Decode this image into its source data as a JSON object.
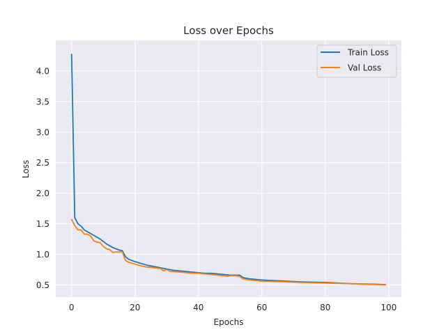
{
  "chart_data": {
    "type": "line",
    "title": "Loss over Epochs",
    "xlabel": "Epochs",
    "ylabel": "Loss",
    "xlim": [
      -5,
      104
    ],
    "ylim": [
      0.3,
      4.5
    ],
    "xticks": [
      0,
      20,
      40,
      60,
      80,
      100
    ],
    "yticks": [
      0.5,
      1.0,
      1.5,
      2.0,
      2.5,
      3.0,
      3.5,
      4.0
    ],
    "grid": true,
    "legend_position": "top-right",
    "background": "#eaeaf2",
    "series": [
      {
        "name": "Train Loss",
        "color": "#1f77b4",
        "points": [
          [
            0,
            4.27
          ],
          [
            1,
            1.6
          ],
          [
            2,
            1.5
          ],
          [
            3,
            1.46
          ],
          [
            4,
            1.4
          ],
          [
            5,
            1.37
          ],
          [
            6,
            1.34
          ],
          [
            7,
            1.31
          ],
          [
            8,
            1.28
          ],
          [
            9,
            1.25
          ],
          [
            10,
            1.21
          ],
          [
            11,
            1.17
          ],
          [
            12,
            1.14
          ],
          [
            13,
            1.11
          ],
          [
            14,
            1.09
          ],
          [
            15,
            1.07
          ],
          [
            16,
            1.06
          ],
          [
            17,
            0.96
          ],
          [
            18,
            0.92
          ],
          [
            20,
            0.88
          ],
          [
            22,
            0.85
          ],
          [
            24,
            0.82
          ],
          [
            26,
            0.8
          ],
          [
            28,
            0.78
          ],
          [
            30,
            0.76
          ],
          [
            32,
            0.74
          ],
          [
            34,
            0.73
          ],
          [
            36,
            0.72
          ],
          [
            38,
            0.71
          ],
          [
            40,
            0.7
          ],
          [
            42,
            0.69
          ],
          [
            44,
            0.69
          ],
          [
            46,
            0.68
          ],
          [
            48,
            0.67
          ],
          [
            50,
            0.66
          ],
          [
            52,
            0.66
          ],
          [
            53,
            0.66
          ],
          [
            54,
            0.62
          ],
          [
            56,
            0.6
          ],
          [
            58,
            0.59
          ],
          [
            60,
            0.58
          ],
          [
            64,
            0.57
          ],
          [
            68,
            0.56
          ],
          [
            72,
            0.55
          ],
          [
            76,
            0.545
          ],
          [
            80,
            0.54
          ],
          [
            84,
            0.53
          ],
          [
            88,
            0.52
          ],
          [
            92,
            0.515
          ],
          [
            96,
            0.51
          ],
          [
            99,
            0.505
          ]
        ]
      },
      {
        "name": "Val Loss",
        "color": "#ff7f0e",
        "points": [
          [
            0,
            1.57
          ],
          [
            1,
            1.47
          ],
          [
            2,
            1.4
          ],
          [
            3,
            1.4
          ],
          [
            4,
            1.33
          ],
          [
            5,
            1.33
          ],
          [
            6,
            1.3
          ],
          [
            7,
            1.22
          ],
          [
            8,
            1.2
          ],
          [
            9,
            1.19
          ],
          [
            10,
            1.13
          ],
          [
            11,
            1.09
          ],
          [
            12,
            1.08
          ],
          [
            13,
            1.03
          ],
          [
            14,
            1.04
          ],
          [
            15,
            1.04
          ],
          [
            16,
            1.04
          ],
          [
            17,
            0.9
          ],
          [
            18,
            0.87
          ],
          [
            20,
            0.84
          ],
          [
            22,
            0.81
          ],
          [
            24,
            0.79
          ],
          [
            26,
            0.78
          ],
          [
            28,
            0.77
          ],
          [
            29,
            0.73
          ],
          [
            30,
            0.75
          ],
          [
            31,
            0.72
          ],
          [
            32,
            0.72
          ],
          [
            34,
            0.71
          ],
          [
            36,
            0.7
          ],
          [
            38,
            0.69
          ],
          [
            40,
            0.69
          ],
          [
            42,
            0.68
          ],
          [
            44,
            0.67
          ],
          [
            46,
            0.66
          ],
          [
            48,
            0.65
          ],
          [
            49,
            0.64
          ],
          [
            50,
            0.65
          ],
          [
            52,
            0.65
          ],
          [
            53,
            0.64
          ],
          [
            54,
            0.6
          ],
          [
            56,
            0.58
          ],
          [
            58,
            0.57
          ],
          [
            60,
            0.56
          ],
          [
            64,
            0.555
          ],
          [
            68,
            0.55
          ],
          [
            72,
            0.54
          ],
          [
            76,
            0.535
          ],
          [
            80,
            0.53
          ],
          [
            84,
            0.525
          ],
          [
            88,
            0.52
          ],
          [
            92,
            0.51
          ],
          [
            96,
            0.505
          ],
          [
            99,
            0.5
          ]
        ]
      }
    ]
  }
}
